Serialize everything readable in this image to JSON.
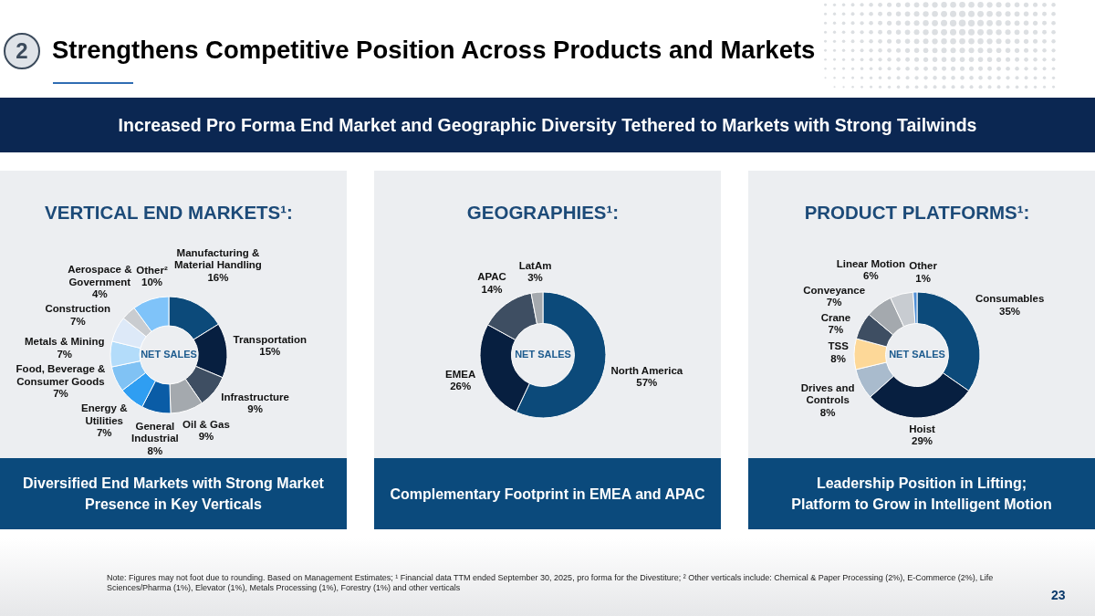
{
  "chart_data": [
    {
      "type": "other",
      "title": "Strengthens Competitive Position Across Products and Markets",
      "subtitle": "Increased Pro Forma End Market and Geographic Diversity Tethered to Markets with Strong Tailwinds",
      "annotations": [
        "2"
      ]
    },
    {
      "type": "donut",
      "title": "VERTICAL END MARKETS¹:",
      "categories": [
        "Manufacturing & Material Handling",
        "Transportation",
        "Infrastructure",
        "Oil & Gas",
        "General Industrial",
        "Energy & Utilities",
        "Food, Beverage & Consumer Goods",
        "Metals & Mining",
        "Construction",
        "Aerospace & Government",
        "Other²"
      ],
      "values": [
        16,
        15,
        9,
        9,
        8,
        7,
        7,
        7,
        7,
        4,
        10
      ],
      "colors": [
        "#0c4a7a",
        "#071f40",
        "#3e4e62",
        "#a4a9ae",
        "#0a5ca6",
        "#2f9ef2",
        "#80c2f4",
        "#b3dcfa",
        "#dde9f8",
        "#c9ccd0",
        "#7fc3f9"
      ],
      "value_labels": [
        "16%",
        "15%",
        "9%",
        "9%",
        "8%",
        "7%",
        "7%",
        "7%",
        "7%",
        "4%",
        "10%"
      ],
      "annotations": [
        "NET SALES",
        "Diversified End Markets with Strong Market Presence in Key Verticals"
      ]
    },
    {
      "type": "donut",
      "title": "GEOGRAPHIES¹:",
      "categories": [
        "North America",
        "EMEA",
        "APAC",
        "LatAm"
      ],
      "values": [
        57,
        26,
        14,
        3
      ],
      "colors": [
        "#0c4a7a",
        "#071f40",
        "#3e4e62",
        "#a4a9ae"
      ],
      "value_labels": [
        "57%",
        "26%",
        "14%",
        "3%"
      ],
      "annotations": [
        "NET SALES",
        "Complementary Footprint in EMEA and APAC"
      ]
    },
    {
      "type": "donut",
      "title": "PRODUCT PLATFORMS¹:",
      "categories": [
        "Consumables",
        "Hoist",
        "Drives and Controls",
        "TSS",
        "Crane",
        "Conveyance",
        "Linear Motion",
        "Other"
      ],
      "values": [
        35,
        29,
        8,
        8,
        7,
        7,
        6,
        1
      ],
      "colors": [
        "#0c4a7a",
        "#071f40",
        "#a9bbcd",
        "#fdd898",
        "#3e4e62",
        "#a4a9ae",
        "#c8ccd1",
        "#4f8fd6"
      ],
      "value_labels": [
        "35%",
        "29%",
        "8%",
        "8%",
        "7%",
        "7%",
        "6%",
        "1%"
      ],
      "annotations": [
        "NET SALES",
        "Leadership Position in Lifting; Platform to Grow in Intelligent Motion"
      ]
    },
    {
      "type": "other",
      "annotations": [
        "Note: Figures may not foot due to rounding. Based on Management Estimates; ¹ Financial data TTM ended September 30, 2025, pro forma for the Divestiture; ² Other verticals include: Chemical & Paper Processing (2%), E-Commerce (2%), Life Sciences/Pharma (1%), Elevator (1%), Metals Processing (1%), Forestry (1%) and other verticals",
        "23"
      ]
    }
  ]
}
